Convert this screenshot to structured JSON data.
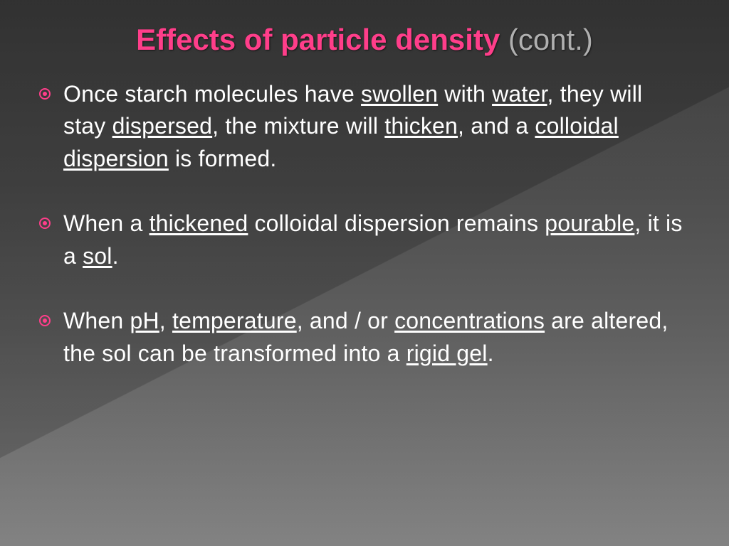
{
  "colors": {
    "accent": "#ff3e8a",
    "title_cont": "#b0b0b0",
    "body_text": "#ffffff",
    "bg_top": "#3a3a3a",
    "bg_bottom": "#808080"
  },
  "typography": {
    "title_fontsize": 42,
    "body_fontsize": 32,
    "font_family": "Century Gothic"
  },
  "title": {
    "main": "Effects of particle density",
    "cont": " (cont.)"
  },
  "bullets": [
    {
      "segments": [
        {
          "t": "Once starch molecules have "
        },
        {
          "t": "swollen",
          "u": true
        },
        {
          "t": " with "
        },
        {
          "t": "water",
          "u": true
        },
        {
          "t": ", they will stay "
        },
        {
          "t": "dispersed",
          "u": true
        },
        {
          "t": ", the mixture will "
        },
        {
          "t": "thicken",
          "u": true
        },
        {
          "t": ", and a "
        },
        {
          "t": "colloidal dispersion",
          "u": true
        },
        {
          "t": " is formed."
        }
      ]
    },
    {
      "segments": [
        {
          "t": "When a "
        },
        {
          "t": "thickened",
          "u": true
        },
        {
          "t": " colloidal dispersion remains "
        },
        {
          "t": "pourable",
          "u": true
        },
        {
          "t": ", it is a "
        },
        {
          "t": "sol",
          "u": true
        },
        {
          "t": "."
        }
      ]
    },
    {
      "segments": [
        {
          "t": "When "
        },
        {
          "t": "pH",
          "u": true
        },
        {
          "t": ", "
        },
        {
          "t": "temperature",
          "u": true
        },
        {
          "t": ", and / or "
        },
        {
          "t": "concentrations",
          "u": true
        },
        {
          "t": " are altered, the sol can be transformed into a "
        },
        {
          "t": "rigid gel",
          "u": true
        },
        {
          "t": "."
        }
      ]
    }
  ]
}
